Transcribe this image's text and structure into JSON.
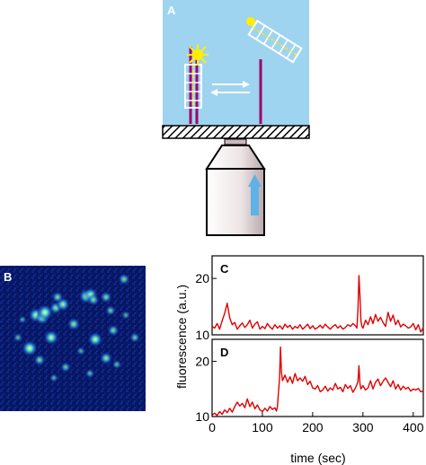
{
  "panels": {
    "a": {
      "label": "A"
    },
    "b": {
      "label": "B"
    },
    "c": {
      "label": "C"
    },
    "d": {
      "label": "D"
    }
  },
  "colors": {
    "sky": "#9ed4f0",
    "trace": "#e00000",
    "dna": "#a0006a",
    "fluor": "#ffee00",
    "arrow": "#5fb2e6",
    "objective": "#ede6e6"
  },
  "chart_data": [
    {
      "type": "line",
      "panel": "C",
      "ylabel": "fluorescence (a.u.)",
      "xlim": [
        0,
        420
      ],
      "ylim": [
        10,
        24
      ],
      "yticks": [
        10,
        20
      ],
      "series": [
        {
          "x": [
            0,
            5,
            10,
            15,
            20,
            25,
            30,
            35,
            40,
            45,
            50,
            55,
            60,
            65,
            70,
            75,
            80,
            85,
            90,
            95,
            100,
            105,
            110,
            115,
            120,
            125,
            130,
            135,
            140,
            145,
            150,
            155,
            160,
            165,
            170,
            175,
            180,
            185,
            190,
            195,
            200,
            205,
            210,
            215,
            220,
            225,
            230,
            235,
            240,
            245,
            250,
            255,
            260,
            265,
            270,
            275,
            280,
            285,
            288,
            290,
            292,
            294,
            296,
            298,
            300,
            305,
            310,
            315,
            320,
            325,
            330,
            335,
            340,
            345,
            350,
            355,
            360,
            365,
            370,
            375,
            380,
            385,
            390,
            395,
            400,
            405,
            410,
            415,
            420
          ],
          "values": [
            11.5,
            11.2,
            12.0,
            11.0,
            12.5,
            13.8,
            15.6,
            13.0,
            11.8,
            12.2,
            11.0,
            11.6,
            12.1,
            11.3,
            11.8,
            12.6,
            11.2,
            11.9,
            12.3,
            11.0,
            11.5,
            11.1,
            12.0,
            11.4,
            11.0,
            11.8,
            11.2,
            11.6,
            11.0,
            11.9,
            11.3,
            11.7,
            11.0,
            11.5,
            11.2,
            11.8,
            11.0,
            11.4,
            11.9,
            11.1,
            11.6,
            11.0,
            11.3,
            11.7,
            11.2,
            11.9,
            11.4,
            11.0,
            11.5,
            11.8,
            11.2,
            11.6,
            11.0,
            11.3,
            11.8,
            11.5,
            12.0,
            11.6,
            11.2,
            14.5,
            20.5,
            17.0,
            12.5,
            11.5,
            11.2,
            12.6,
            11.8,
            13.2,
            12.0,
            13.6,
            12.4,
            13.1,
            12.2,
            11.5,
            14.0,
            12.4,
            13.5,
            11.8,
            12.6,
            11.4,
            11.9,
            11.6,
            11.2,
            11.4,
            12.0,
            10.9,
            11.8,
            10.5,
            11.3
          ]
        }
      ]
    },
    {
      "type": "line",
      "panel": "D",
      "xlabel": "time (sec)",
      "xlim": [
        0,
        420
      ],
      "ylim": [
        10,
        24
      ],
      "xticks": [
        0,
        100,
        200,
        300,
        400
      ],
      "yticks": [
        10,
        20
      ],
      "series": [
        {
          "x": [
            0,
            5,
            10,
            15,
            20,
            25,
            30,
            35,
            40,
            45,
            50,
            55,
            60,
            65,
            70,
            75,
            80,
            85,
            90,
            95,
            100,
            105,
            110,
            115,
            120,
            125,
            128,
            130,
            132,
            134,
            136,
            138,
            140,
            145,
            150,
            155,
            160,
            165,
            170,
            175,
            180,
            185,
            190,
            195,
            200,
            205,
            210,
            215,
            220,
            225,
            230,
            235,
            240,
            245,
            250,
            255,
            260,
            265,
            270,
            275,
            280,
            285,
            288,
            290,
            292,
            294,
            296,
            300,
            305,
            310,
            315,
            320,
            325,
            330,
            335,
            340,
            345,
            350,
            355,
            360,
            365,
            370,
            375,
            380,
            385,
            390,
            395,
            400,
            405,
            410,
            415,
            420
          ],
          "values": [
            10.3,
            10.6,
            10.2,
            10.9,
            10.4,
            11.2,
            10.7,
            11.5,
            10.8,
            11.8,
            12.6,
            11.9,
            12.4,
            11.6,
            13.2,
            11.8,
            12.6,
            11.4,
            12.1,
            11.2,
            10.9,
            11.5,
            11.0,
            11.8,
            11.3,
            11.6,
            11.0,
            11.8,
            14.5,
            16.8,
            22.6,
            18.0,
            16.5,
            17.5,
            16.2,
            17.2,
            16.0,
            17.8,
            16.5,
            17.0,
            16.4,
            17.3,
            15.8,
            16.4,
            15.2,
            15.0,
            15.6,
            14.5,
            14.8,
            15.5,
            14.6,
            15.2,
            14.8,
            16.0,
            15.0,
            15.3,
            14.5,
            15.8,
            15.1,
            15.6,
            14.4,
            15.2,
            15.8,
            16.4,
            19.2,
            16.0,
            15.0,
            15.6,
            14.8,
            15.2,
            16.5,
            15.0,
            16.2,
            16.8,
            15.6,
            16.4,
            17.0,
            16.2,
            15.4,
            16.5,
            15.0,
            15.8,
            14.8,
            15.5,
            15.0,
            15.3,
            14.6,
            15.0,
            14.8,
            15.1,
            14.5,
            14.6
          ]
        }
      ]
    }
  ],
  "image_b": {
    "spots": [
      [
        33,
        92,
        1.0
      ],
      [
        40,
        55,
        0.9
      ],
      [
        47,
        58,
        0.8
      ],
      [
        57,
        80,
        0.9
      ],
      [
        50,
        52,
        1.0
      ],
      [
        62,
        47,
        0.7
      ],
      [
        70,
        43,
        0.8
      ],
      [
        64,
        35,
        0.6
      ],
      [
        82,
        65,
        0.7
      ],
      [
        96,
        34,
        0.9
      ],
      [
        101,
        32,
        0.8
      ],
      [
        104,
        38,
        0.6
      ],
      [
        106,
        82,
        0.9
      ],
      [
        118,
        35,
        0.6
      ],
      [
        123,
        50,
        0.5
      ],
      [
        126,
        72,
        0.6
      ],
      [
        138,
        15,
        0.6
      ],
      [
        44,
        105,
        0.6
      ],
      [
        118,
        103,
        0.7
      ],
      [
        73,
        113,
        0.5
      ],
      [
        20,
        80,
        0.4
      ],
      [
        130,
        110,
        0.4
      ],
      [
        100,
        120,
        0.4
      ],
      [
        150,
        80,
        0.5
      ],
      [
        90,
        95,
        0.35
      ],
      [
        60,
        125,
        0.35
      ],
      [
        25,
        60,
        0.3
      ],
      [
        140,
        55,
        0.35
      ]
    ]
  }
}
